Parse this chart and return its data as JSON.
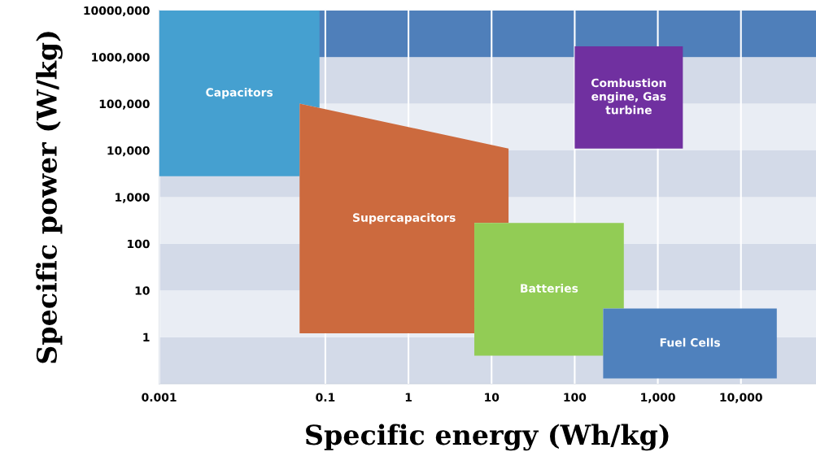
{
  "chart_data": {
    "type": "area",
    "xlabel": "Specific energy (Wh/kg)",
    "ylabel": "Specific power (W/kg)",
    "log": "xy",
    "grid": "x",
    "xlim": [
      0.001,
      80000
    ],
    "ylim": [
      0.1,
      10000000
    ],
    "xticks": [
      0.001,
      {
        "value": 0.1,
        "label": "0.1"
      },
      {
        "value": 1,
        "label": "1"
      },
      {
        "value": 10,
        "label": "10"
      },
      {
        "value": 100,
        "label": "100"
      },
      {
        "value": 1000,
        "label": "1,000"
      },
      {
        "value": 10000,
        "label": "10,000"
      }
    ],
    "yticks": [
      {
        "value": 1,
        "label": "1"
      },
      {
        "value": 10,
        "label": "10"
      },
      {
        "value": 100,
        "label": "100"
      },
      {
        "value": 1000,
        "label": "1,000"
      },
      {
        "value": 10000,
        "label": "10,000"
      },
      {
        "value": 100000,
        "label": "100,000"
      },
      {
        "value": 1000000,
        "label": "1000,000"
      },
      {
        "value": 10000000,
        "label": "10000,000"
      }
    ],
    "bands": [
      {
        "axis": "y",
        "from": 0.1,
        "to": 1,
        "color": "#d3dae8"
      },
      {
        "axis": "y",
        "from": 1,
        "to": 10,
        "color": "#e9edf4"
      },
      {
        "axis": "y",
        "from": 10,
        "to": 100,
        "color": "#d3dae8"
      },
      {
        "axis": "y",
        "from": 100,
        "to": 1000,
        "color": "#e9edf4"
      },
      {
        "axis": "y",
        "from": 1000,
        "to": 10000,
        "color": "#d3dae8"
      },
      {
        "axis": "y",
        "from": 10000,
        "to": 100000,
        "color": "#e9edf4"
      },
      {
        "axis": "y",
        "from": 100000,
        "to": 1000000,
        "color": "#d3dae8"
      },
      {
        "axis": "y",
        "from": 1000000,
        "to": 10000000,
        "color": "#4f7fba"
      }
    ],
    "series": [
      {
        "name": "Capacitors",
        "color": "#45a0d0",
        "x": [
          0.001,
          0.085,
          0.085,
          0.049,
          0.049,
          0.001
        ],
        "values": [
          10000000,
          10000000,
          81000,
          100000,
          2800,
          2800
        ]
      },
      {
        "name": "Supercapacitors",
        "color": "#cc6a3e",
        "x": [
          0.049,
          16,
          16,
          6.2,
          6.2,
          0.049
        ],
        "values": [
          100000,
          11000,
          280,
          280,
          1.2,
          1.2
        ]
      },
      {
        "name": "Batteries",
        "color": "#92cc55",
        "x": [
          6.2,
          390,
          390,
          220,
          220,
          6.2
        ],
        "values": [
          280,
          280,
          4.1,
          4.1,
          0.4,
          0.4
        ]
      },
      {
        "name": "Fuel Cells",
        "color": "#4f81bd",
        "x": [
          220,
          27000,
          27000,
          220
        ],
        "values": [
          4.1,
          4.1,
          0.13,
          0.13
        ]
      },
      {
        "name": "Combustion\nengine, Gas\nturbine",
        "color": "#7030a0",
        "x": [
          100,
          2000,
          2000,
          100
        ],
        "values": [
          1700000,
          1700000,
          11000,
          11000
        ]
      }
    ]
  }
}
